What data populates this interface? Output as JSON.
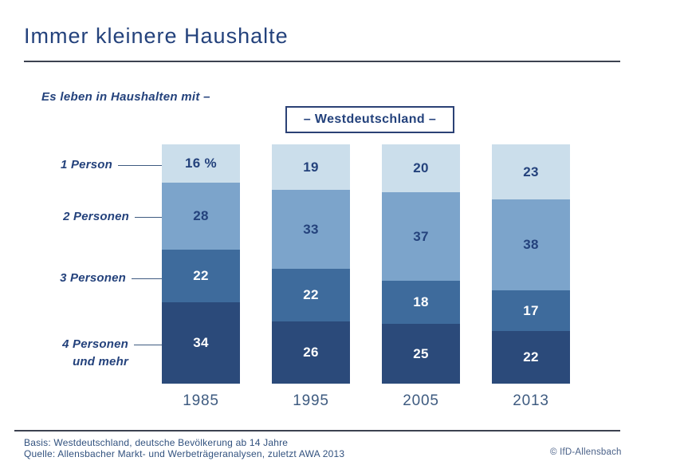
{
  "title": "Immer kleinere Haushalte",
  "subtitle": "Es leben in Haushalten mit –",
  "region_box_label": "– Westdeutschland –",
  "chart_data": {
    "type": "bar",
    "stacked": true,
    "orientation": "vertical",
    "unit": "percent",
    "ylim": [
      0,
      100
    ],
    "grid": false,
    "legend_position": "left-row-labels",
    "categories": [
      "1985",
      "1995",
      "2005",
      "2013"
    ],
    "series": [
      {
        "name": "1 Person",
        "label_lines": [
          "1 Person"
        ],
        "values": [
          16,
          19,
          20,
          23
        ],
        "color": "#CBDEEB",
        "text_color": "#24427C"
      },
      {
        "name": "2 Personen",
        "label_lines": [
          "2 Personen"
        ],
        "values": [
          28,
          33,
          37,
          38
        ],
        "color": "#7CA4CB",
        "text_color": "#24427C"
      },
      {
        "name": "3 Personen",
        "label_lines": [
          "3 Personen"
        ],
        "values": [
          22,
          22,
          18,
          17
        ],
        "color": "#3E6B9C",
        "text_color": "#FFFFFF"
      },
      {
        "name": "4 Personen und mehr",
        "label_lines": [
          "4 Personen",
          "und mehr"
        ],
        "values": [
          34,
          26,
          25,
          22
        ],
        "color": "#2B4A7A",
        "text_color": "#FFFFFF"
      }
    ],
    "first_segment_suffix": " %"
  },
  "footer": {
    "basis": "Basis: Westdeutschland, deutsche Bevölkerung ab 14 Jahre",
    "quelle": "Quelle: Allensbacher Markt- und Werbeträgeranalysen, zuletzt AWA 2013",
    "copyright": "© IfD-Allensbach"
  },
  "colors": {
    "heading": "#24427C",
    "rule": "#3C4250",
    "axis_label": "#3E5B80",
    "footnote": "#31517E",
    "segment_1": "#CBDEEB",
    "segment_2": "#7CA4CB",
    "segment_3": "#3E6B9C",
    "segment_4": "#2B4A7A"
  }
}
